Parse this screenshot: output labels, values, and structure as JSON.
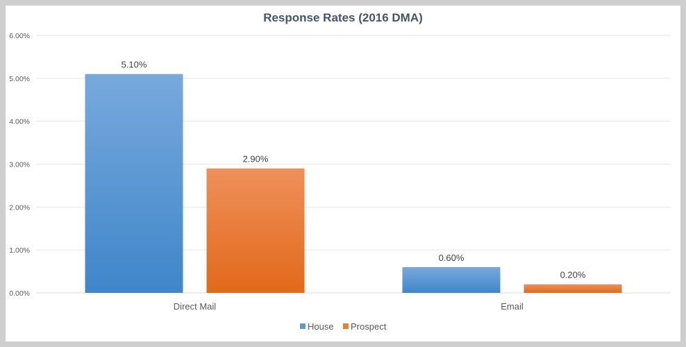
{
  "chart_data": {
    "type": "bar",
    "title": "Response Rates (2016 DMA)",
    "categories": [
      "Direct Mail",
      "Email"
    ],
    "series": [
      {
        "name": "House",
        "values": [
          0.051,
          0.006
        ],
        "labels": [
          "5.10%",
          "0.60%"
        ],
        "color": "#5b9bd5"
      },
      {
        "name": "Prospect",
        "values": [
          0.029,
          0.002
        ],
        "labels": [
          "2.90%",
          "0.20%"
        ],
        "color": "#ed7d31"
      }
    ],
    "y_ticks": [
      "0.00%",
      "1.00%",
      "2.00%",
      "3.00%",
      "4.00%",
      "5.00%",
      "6.00%"
    ],
    "ylim": [
      0,
      0.06
    ],
    "grid": true,
    "legend_position": "bottom",
    "xlabel": "",
    "ylabel": ""
  }
}
